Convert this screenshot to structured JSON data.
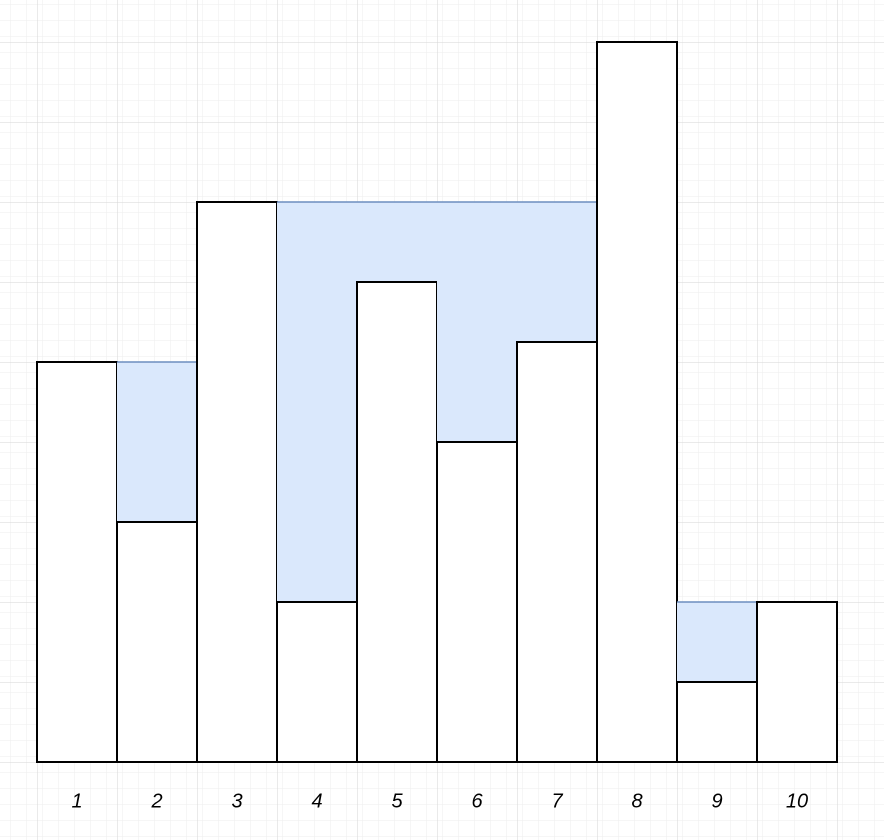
{
  "chart_data": {
    "type": "bar",
    "categories": [
      "1",
      "2",
      "3",
      "4",
      "5",
      "6",
      "7",
      "8",
      "9",
      "10"
    ],
    "values": [
      5,
      3,
      7,
      2,
      6,
      4,
      5.25,
      9,
      1,
      2
    ],
    "water": [
      0,
      2,
      0,
      5,
      1,
      3,
      1.75,
      0,
      1,
      0
    ],
    "color": "#ffffff",
    "water_color": "#dae8fc",
    "water_edge_color": "#6c8ebf"
  }
}
